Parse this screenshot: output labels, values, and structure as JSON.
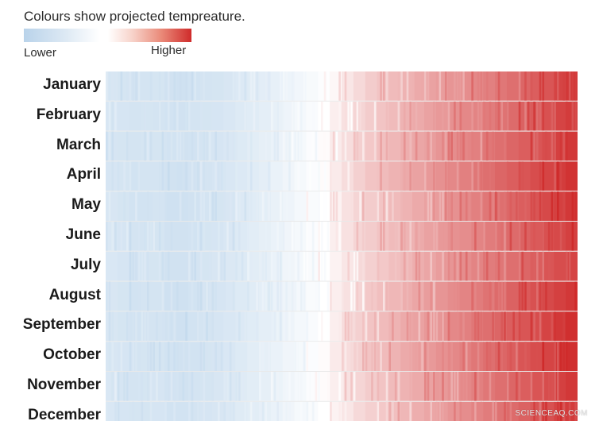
{
  "legend": {
    "title": "Colours show projected tempreature.",
    "low_label": "Lower",
    "high_label": "Higher",
    "colors": [
      "#b9d3ea",
      "#ffffff",
      "#cf2b2b"
    ]
  },
  "watermark": "SCIENCEAQ.COM",
  "chart_data": {
    "type": "heatmap",
    "title": "",
    "xlabel": "",
    "ylabel": "",
    "rows": [
      "January",
      "February",
      "March",
      "April",
      "May",
      "June",
      "July",
      "August",
      "September",
      "October",
      "November",
      "December"
    ],
    "scale": "relative projected temperature, 0 = lower, 1 = higher",
    "columns": 40,
    "row_trend": [
      [
        0.22,
        0.2,
        0.18,
        0.19,
        0.2,
        0.17,
        0.16,
        0.18,
        0.19,
        0.2,
        0.22,
        0.25,
        0.27,
        0.3,
        0.33,
        0.37,
        0.4,
        0.44,
        0.48,
        0.52,
        0.56,
        0.59,
        0.62,
        0.64,
        0.66,
        0.68,
        0.7,
        0.72,
        0.73,
        0.75,
        0.77,
        0.78,
        0.8,
        0.82,
        0.84,
        0.86,
        0.88,
        0.9,
        0.94,
        0.97
      ],
      [
        0.22,
        0.21,
        0.19,
        0.2,
        0.19,
        0.18,
        0.17,
        0.19,
        0.2,
        0.21,
        0.23,
        0.26,
        0.28,
        0.31,
        0.34,
        0.38,
        0.42,
        0.46,
        0.5,
        0.54,
        0.57,
        0.6,
        0.62,
        0.64,
        0.66,
        0.68,
        0.7,
        0.72,
        0.74,
        0.76,
        0.78,
        0.79,
        0.81,
        0.83,
        0.85,
        0.87,
        0.89,
        0.91,
        0.94,
        0.96
      ],
      [
        0.21,
        0.2,
        0.19,
        0.2,
        0.2,
        0.18,
        0.17,
        0.18,
        0.2,
        0.21,
        0.23,
        0.26,
        0.29,
        0.32,
        0.35,
        0.39,
        0.43,
        0.47,
        0.51,
        0.55,
        0.58,
        0.61,
        0.63,
        0.65,
        0.67,
        0.69,
        0.71,
        0.73,
        0.75,
        0.77,
        0.79,
        0.8,
        0.82,
        0.84,
        0.86,
        0.88,
        0.9,
        0.92,
        0.95,
        0.97
      ],
      [
        0.21,
        0.2,
        0.18,
        0.19,
        0.19,
        0.17,
        0.16,
        0.18,
        0.19,
        0.21,
        0.23,
        0.25,
        0.28,
        0.31,
        0.35,
        0.39,
        0.43,
        0.47,
        0.51,
        0.55,
        0.58,
        0.61,
        0.64,
        0.66,
        0.68,
        0.7,
        0.72,
        0.74,
        0.76,
        0.78,
        0.8,
        0.82,
        0.84,
        0.86,
        0.88,
        0.9,
        0.92,
        0.94,
        0.96,
        0.98
      ],
      [
        0.22,
        0.2,
        0.18,
        0.18,
        0.19,
        0.16,
        0.16,
        0.17,
        0.19,
        0.2,
        0.22,
        0.25,
        0.28,
        0.31,
        0.34,
        0.38,
        0.42,
        0.46,
        0.5,
        0.53,
        0.57,
        0.6,
        0.62,
        0.64,
        0.66,
        0.68,
        0.7,
        0.72,
        0.74,
        0.76,
        0.78,
        0.8,
        0.82,
        0.84,
        0.86,
        0.88,
        0.9,
        0.93,
        0.95,
        0.97
      ],
      [
        0.23,
        0.21,
        0.19,
        0.19,
        0.2,
        0.17,
        0.17,
        0.18,
        0.2,
        0.21,
        0.23,
        0.26,
        0.29,
        0.32,
        0.35,
        0.39,
        0.43,
        0.47,
        0.5,
        0.54,
        0.57,
        0.6,
        0.62,
        0.64,
        0.66,
        0.68,
        0.7,
        0.72,
        0.74,
        0.76,
        0.77,
        0.79,
        0.81,
        0.83,
        0.85,
        0.87,
        0.89,
        0.91,
        0.93,
        0.95
      ],
      [
        0.23,
        0.21,
        0.19,
        0.2,
        0.2,
        0.17,
        0.17,
        0.19,
        0.2,
        0.22,
        0.24,
        0.26,
        0.29,
        0.32,
        0.35,
        0.39,
        0.42,
        0.46,
        0.5,
        0.53,
        0.56,
        0.59,
        0.61,
        0.63,
        0.65,
        0.67,
        0.69,
        0.71,
        0.73,
        0.75,
        0.77,
        0.79,
        0.81,
        0.82,
        0.84,
        0.86,
        0.88,
        0.9,
        0.92,
        0.94
      ],
      [
        0.22,
        0.2,
        0.18,
        0.19,
        0.19,
        0.16,
        0.16,
        0.18,
        0.19,
        0.21,
        0.23,
        0.26,
        0.28,
        0.31,
        0.35,
        0.38,
        0.42,
        0.46,
        0.5,
        0.54,
        0.57,
        0.6,
        0.63,
        0.65,
        0.67,
        0.69,
        0.71,
        0.73,
        0.75,
        0.77,
        0.79,
        0.81,
        0.83,
        0.85,
        0.87,
        0.89,
        0.91,
        0.93,
        0.95,
        0.97
      ],
      [
        0.22,
        0.2,
        0.18,
        0.19,
        0.19,
        0.17,
        0.16,
        0.18,
        0.19,
        0.21,
        0.23,
        0.25,
        0.28,
        0.31,
        0.34,
        0.38,
        0.42,
        0.46,
        0.5,
        0.54,
        0.58,
        0.61,
        0.64,
        0.66,
        0.68,
        0.7,
        0.72,
        0.74,
        0.76,
        0.78,
        0.8,
        0.82,
        0.84,
        0.86,
        0.88,
        0.9,
        0.92,
        0.94,
        0.97,
        0.99
      ],
      [
        0.22,
        0.21,
        0.19,
        0.2,
        0.2,
        0.18,
        0.17,
        0.18,
        0.2,
        0.21,
        0.23,
        0.26,
        0.29,
        0.32,
        0.35,
        0.39,
        0.43,
        0.47,
        0.51,
        0.55,
        0.58,
        0.61,
        0.64,
        0.66,
        0.68,
        0.7,
        0.72,
        0.74,
        0.76,
        0.78,
        0.8,
        0.82,
        0.84,
        0.86,
        0.88,
        0.9,
        0.92,
        0.94,
        0.97,
        0.99
      ],
      [
        0.23,
        0.21,
        0.19,
        0.2,
        0.21,
        0.18,
        0.17,
        0.19,
        0.2,
        0.22,
        0.24,
        0.27,
        0.29,
        0.32,
        0.36,
        0.39,
        0.43,
        0.47,
        0.51,
        0.54,
        0.57,
        0.6,
        0.62,
        0.64,
        0.66,
        0.68,
        0.7,
        0.72,
        0.74,
        0.76,
        0.78,
        0.8,
        0.82,
        0.84,
        0.86,
        0.88,
        0.9,
        0.92,
        0.95,
        0.97
      ],
      [
        0.23,
        0.21,
        0.2,
        0.2,
        0.21,
        0.18,
        0.18,
        0.19,
        0.21,
        0.22,
        0.24,
        0.27,
        0.29,
        0.32,
        0.35,
        0.39,
        0.43,
        0.46,
        0.5,
        0.53,
        0.56,
        0.59,
        0.61,
        0.63,
        0.65,
        0.67,
        0.69,
        0.71,
        0.73,
        0.75,
        0.77,
        0.79,
        0.81,
        0.83,
        0.85,
        0.87,
        0.89,
        0.91,
        0.94,
        0.96
      ]
    ],
    "ylim": [
      0,
      1
    ],
    "legend_position": "top-left",
    "grid": false
  }
}
